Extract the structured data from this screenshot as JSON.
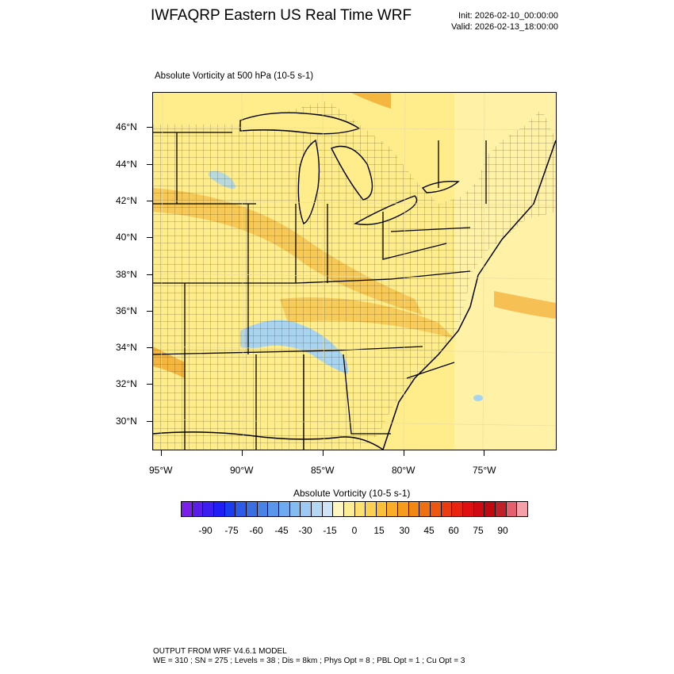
{
  "header": {
    "title": "IWFAQRP Eastern US Real Time WRF",
    "init": "Init: 2026-02-10_00:00:00",
    "valid": "Valid: 2026-02-13_18:00:00"
  },
  "map": {
    "subtitle": "Absolute Vorticity at 500 hPa   (10-5 s-1)",
    "lat_labels": [
      "46°N",
      "44°N",
      "42°N",
      "40°N",
      "38°N",
      "36°N",
      "34°N",
      "32°N",
      "30°N"
    ],
    "lon_labels": [
      "95°W",
      "90°W",
      "85°W",
      "80°W",
      "75°W"
    ],
    "colors": {
      "base_fill": "#ffec8a",
      "light_fill": "#fff4b0",
      "orange_band": "#f5c24a",
      "deep_orange": "#f0a020",
      "blue_patch": "#a8d4f0",
      "state_lines": "#000000"
    }
  },
  "colorbar": {
    "title": "Absolute Vorticity  (10-5 s-1)",
    "colors": [
      "#7a20e8",
      "#5a1ee8",
      "#3c1ef0",
      "#1e1ef5",
      "#1c3cf0",
      "#2d5ae8",
      "#3b6ee0",
      "#4a82e6",
      "#5a96ec",
      "#6eaaee",
      "#84bcf0",
      "#9ccaf2",
      "#b4d8f4",
      "#cce4f6",
      "#fff6c0",
      "#ffee96",
      "#fde070",
      "#fcd050",
      "#fac038",
      "#f8ae28",
      "#f59c1c",
      "#f28814",
      "#ef7010",
      "#ec5810",
      "#ea3c10",
      "#e82410",
      "#e01010",
      "#d00a10",
      "#c00810",
      "#c02028",
      "#e46070",
      "#f4a0a8"
    ],
    "labels": [
      "-90",
      "-75",
      "-60",
      "-45",
      "-30",
      "-15",
      "0",
      "15",
      "30",
      "45",
      "60",
      "75",
      "90"
    ]
  },
  "footer": {
    "line1": "OUTPUT FROM WRF V4.6.1 MODEL",
    "line2": "WE = 310 ; SN = 275 ; Levels = 38 ; Dis = 8km ; Phys Opt = 8 ; PBL Opt = 1 ; Cu Opt = 3"
  }
}
